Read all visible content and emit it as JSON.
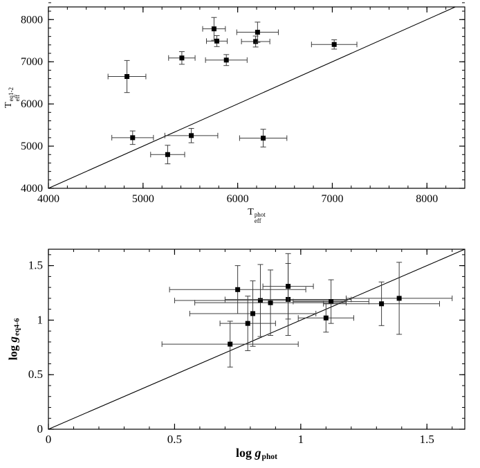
{
  "colors": {
    "axis": "#000000",
    "identity_line": "#000000",
    "error_bar": "#3c3c3c",
    "marker": "#000000",
    "background": "#ffffff"
  },
  "chart_data": [
    {
      "type": "scatter",
      "title": "",
      "xlabel": {
        "pre": "",
        "var": "T",
        "sub": "eff",
        "sup": "phot"
      },
      "ylabel": {
        "pre": "",
        "var": "T",
        "sub": "eff",
        "sup": "eq1-2"
      },
      "xlim": [
        4000,
        8400
      ],
      "ylim": [
        4000,
        8300
      ],
      "xticks": [
        4000,
        5000,
        6000,
        7000,
        8000
      ],
      "xtick_labels": [
        "4000",
        "5000",
        "6000",
        "7000",
        "8000"
      ],
      "yticks": [
        4000,
        5000,
        6000,
        7000,
        8000
      ],
      "ytick_labels": [
        "4000",
        "5000",
        "6000",
        "7000",
        "8000"
      ],
      "minor_tick_step_x": 200,
      "minor_tick_step_y": 200,
      "grid": false,
      "legend": false,
      "identity_line": true,
      "marker": "filled-square",
      "points": [
        {
          "x": 4830,
          "y": 6650,
          "xerr": 200,
          "yerr": 380
        },
        {
          "x": 4890,
          "y": 5200,
          "xerr": 220,
          "yerr": 160
        },
        {
          "x": 5260,
          "y": 4800,
          "xerr": 180,
          "yerr": 220
        },
        {
          "x": 5410,
          "y": 7090,
          "xerr": 140,
          "yerr": 150
        },
        {
          "x": 5510,
          "y": 5250,
          "xerr": 280,
          "yerr": 170
        },
        {
          "x": 5750,
          "y": 7780,
          "xerr": 120,
          "yerr": 270
        },
        {
          "x": 5780,
          "y": 7490,
          "xerr": 110,
          "yerr": 130
        },
        {
          "x": 5880,
          "y": 7040,
          "xerr": 220,
          "yerr": 130
        },
        {
          "x": 6190,
          "y": 7480,
          "xerr": 150,
          "yerr": 130
        },
        {
          "x": 6210,
          "y": 7700,
          "xerr": 220,
          "yerr": 240
        },
        {
          "x": 6270,
          "y": 5190,
          "xerr": 250,
          "yerr": 210
        },
        {
          "x": 7020,
          "y": 7410,
          "xerr": 240,
          "yerr": 110
        }
      ]
    },
    {
      "type": "scatter",
      "title": "",
      "xlabel": {
        "pre": "log ",
        "var": "g",
        "sub": "",
        "sup": "phot"
      },
      "ylabel": {
        "pre": "log ",
        "var": "g",
        "sub": "",
        "sup": "eq4-6"
      },
      "xlim": [
        0,
        1.65
      ],
      "ylim": [
        0,
        1.65
      ],
      "xticks": [
        0,
        0.5,
        1,
        1.5
      ],
      "xtick_labels": [
        "0",
        "0.5",
        "1",
        "1.5"
      ],
      "yticks": [
        0,
        0.5,
        1,
        1.5
      ],
      "ytick_labels": [
        "0",
        "0.5",
        "1",
        "1.5"
      ],
      "minor_tick_step_x": 0.1,
      "minor_tick_step_y": 0.1,
      "grid": false,
      "legend": false,
      "identity_line": true,
      "marker": "filled-square",
      "points": [
        {
          "x": 0.72,
          "y": 0.78,
          "xerr": 0.27,
          "yerr": 0.21
        },
        {
          "x": 0.75,
          "y": 1.28,
          "xerr": 0.27,
          "yerr": 0.22
        },
        {
          "x": 0.79,
          "y": 0.97,
          "xerr": 0.11,
          "yerr": 0.25
        },
        {
          "x": 0.81,
          "y": 1.06,
          "xerr": 0.25,
          "yerr": 0.3
        },
        {
          "x": 0.84,
          "y": 1.18,
          "xerr": 0.34,
          "yerr": 0.33
        },
        {
          "x": 0.88,
          "y": 1.16,
          "xerr": 0.3,
          "yerr": 0.3
        },
        {
          "x": 0.95,
          "y": 1.19,
          "xerr": 0.25,
          "yerr": 0.33
        },
        {
          "x": 0.95,
          "y": 1.31,
          "xerr": 0.1,
          "yerr": 0.3
        },
        {
          "x": 1.1,
          "y": 1.02,
          "xerr": 0.11,
          "yerr": 0.13
        },
        {
          "x": 1.12,
          "y": 1.17,
          "xerr": 0.15,
          "yerr": 0.2
        },
        {
          "x": 1.32,
          "y": 1.15,
          "xerr": 0.23,
          "yerr": 0.2
        },
        {
          "x": 1.39,
          "y": 1.2,
          "xerr": 0.21,
          "yerr": 0.33
        }
      ]
    }
  ]
}
